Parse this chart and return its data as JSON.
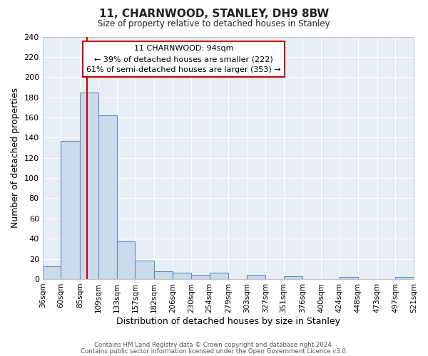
{
  "title": "11, CHARNWOOD, STANLEY, DH9 8BW",
  "subtitle": "Size of property relative to detached houses in Stanley",
  "xlabel": "Distribution of detached houses by size in Stanley",
  "ylabel": "Number of detached properties",
  "bin_edges": [
    36,
    60,
    85,
    109,
    133,
    157,
    182,
    206,
    230,
    254,
    279,
    303,
    327,
    351,
    376,
    400,
    424,
    448,
    473,
    497,
    521
  ],
  "bin_heights": [
    13,
    137,
    185,
    162,
    37,
    18,
    8,
    6,
    4,
    6,
    0,
    4,
    0,
    3,
    0,
    0,
    2,
    0,
    0,
    2
  ],
  "bar_color": "#cddaeb",
  "bar_edge_color": "#6090c0",
  "redline_x": 94,
  "ylim": [
    0,
    240
  ],
  "yticks": [
    0,
    20,
    40,
    60,
    80,
    100,
    120,
    140,
    160,
    180,
    200,
    220,
    240
  ],
  "annotation_title": "11 CHARNWOOD: 94sqm",
  "annotation_line1": "← 39% of detached houses are smaller (222)",
  "annotation_line2": "61% of semi-detached houses are larger (353) →",
  "footer1": "Contains HM Land Registry data © Crown copyright and database right 2024.",
  "footer2": "Contains public sector information licensed under the Open Government Licence v3.0.",
  "background_color": "#ffffff",
  "plot_bg_color": "#e8eef6",
  "grid_color": "#ffffff",
  "annotation_box_facecolor": "#ffffff",
  "annotation_box_edgecolor": "#cc0000",
  "redline_color": "#cc0000"
}
